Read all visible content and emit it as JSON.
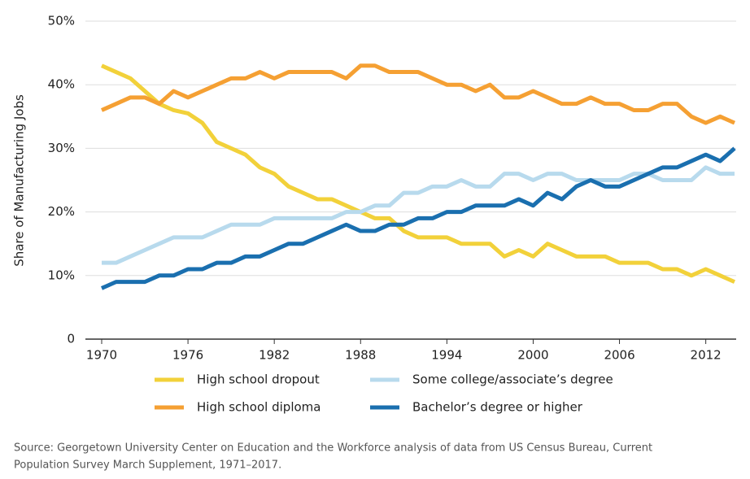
{
  "chart_data": {
    "type": "line",
    "y_label": "Share of Manufacturing Jobs",
    "x": [
      1970,
      1971,
      1972,
      1973,
      1974,
      1975,
      1976,
      1977,
      1978,
      1979,
      1980,
      1981,
      1982,
      1983,
      1984,
      1985,
      1986,
      1987,
      1988,
      1989,
      1990,
      1991,
      1992,
      1993,
      1994,
      1995,
      1996,
      1997,
      1998,
      1999,
      2000,
      2001,
      2002,
      2003,
      2004,
      2005,
      2006,
      2007,
      2008,
      2009,
      2010,
      2011,
      2012,
      2013,
      2014
    ],
    "series": [
      {
        "name": "High school dropout",
        "color": "#f2d13a",
        "values": [
          43,
          42,
          41,
          39,
          37,
          36,
          35.5,
          34,
          31,
          30,
          29,
          27,
          26,
          24,
          23,
          22,
          22,
          21,
          20,
          19,
          19,
          17,
          16,
          16,
          16,
          15,
          15,
          15,
          13,
          14,
          13,
          15,
          14,
          13,
          13,
          13,
          12,
          12,
          12,
          11,
          11,
          10,
          11,
          10,
          9
        ]
      },
      {
        "name": "Some college/associate’s degree",
        "color": "#b8daed",
        "values": [
          12,
          12,
          13,
          14,
          15,
          16,
          16,
          16,
          17,
          18,
          18,
          18,
          19,
          19,
          19,
          19,
          19,
          20,
          20,
          21,
          21,
          23,
          23,
          24,
          24,
          25,
          24,
          24,
          26,
          26,
          25,
          26,
          26,
          25,
          25,
          25,
          25,
          26,
          26,
          25,
          25,
          25,
          27,
          26,
          26
        ]
      },
      {
        "name": "High school diploma",
        "color": "#f5a033",
        "values": [
          36,
          37,
          38,
          38,
          37,
          39,
          38,
          39,
          40,
          41,
          41,
          42,
          41,
          42,
          42,
          42,
          42,
          41,
          43,
          43,
          42,
          42,
          42,
          41,
          40,
          40,
          39,
          40,
          38,
          38,
          39,
          38,
          37,
          37,
          38,
          37,
          37,
          36,
          36,
          37,
          37,
          35,
          34,
          35,
          34
        ]
      },
      {
        "name": "Bachelor’s degree or higher",
        "color": "#1a6faf",
        "values": [
          8,
          9,
          9,
          9,
          10,
          10,
          11,
          11,
          12,
          12,
          13,
          13,
          14,
          15,
          15,
          16,
          17,
          18,
          17,
          17,
          18,
          18,
          19,
          19,
          20,
          20,
          21,
          21,
          21,
          22,
          21,
          23,
          22,
          24,
          25,
          24,
          24,
          25,
          26,
          27,
          27,
          28,
          29,
          28,
          30
        ]
      }
    ],
    "xlim": [
      1970,
      2014
    ],
    "xticks": [
      1970,
      1976,
      1982,
      1988,
      1994,
      2000,
      2006,
      2012
    ],
    "ylim": [
      0,
      50
    ],
    "yticks": [
      0,
      {
        "value": 10,
        "label": "10%"
      },
      {
        "value": 20,
        "label": "20%"
      },
      {
        "value": 30,
        "label": "30%"
      },
      {
        "value": 40,
        "label": "40%"
      },
      {
        "value": 50,
        "label": "50%"
      }
    ],
    "grid": true,
    "source": [
      "Source: Georgetown University Center on Education and the Workforce analysis of data from US Census Bureau, Current",
      "Population Survey March Supplement, 1971–2017."
    ]
  }
}
